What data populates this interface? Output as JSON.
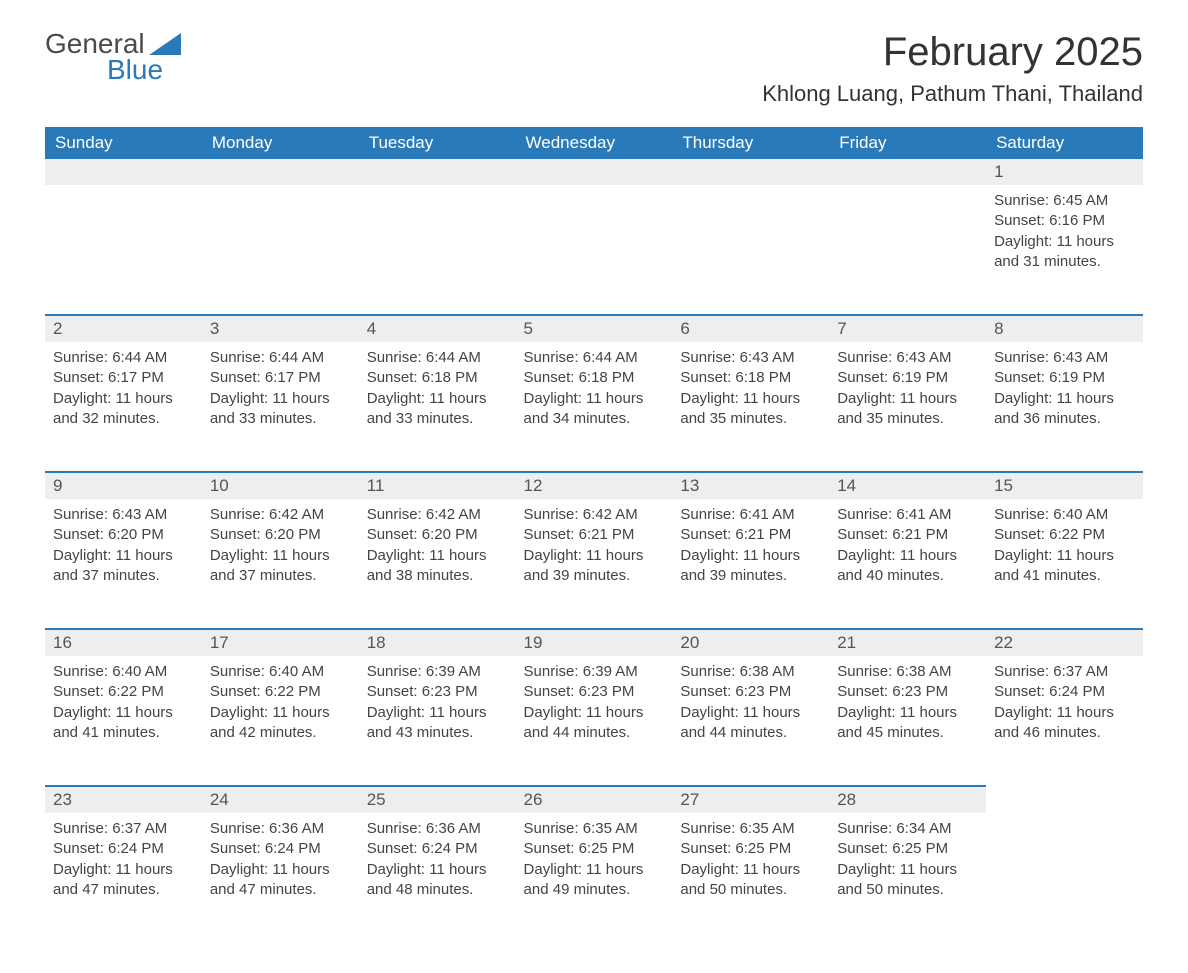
{
  "brand": {
    "name_top": "General",
    "name_bottom": "Blue",
    "text_color_top": "#4a4a4a",
    "text_color_bottom": "#2a7ab9",
    "triangle_color": "#2a7ab9"
  },
  "header": {
    "month_title": "February 2025",
    "location": "Khlong Luang, Pathum Thani, Thailand"
  },
  "colors": {
    "header_bg": "#2a7ab9",
    "header_text": "#ffffff",
    "daynum_bg": "#eeeeee",
    "row_divider": "#2a7ab9",
    "body_text": "#444444",
    "page_bg": "#ffffff"
  },
  "typography": {
    "title_fontsize": 40,
    "location_fontsize": 22,
    "weekday_fontsize": 17,
    "daynum_fontsize": 17,
    "body_fontsize": 15,
    "font_family": "Segoe UI"
  },
  "calendar": {
    "type": "table",
    "weekdays": [
      "Sunday",
      "Monday",
      "Tuesday",
      "Wednesday",
      "Thursday",
      "Friday",
      "Saturday"
    ],
    "labels": {
      "sunrise": "Sunrise:",
      "sunset": "Sunset:",
      "daylight": "Daylight:"
    },
    "weeks": [
      [
        null,
        null,
        null,
        null,
        null,
        null,
        {
          "day": "1",
          "sunrise": "6:45 AM",
          "sunset": "6:16 PM",
          "daylight": "11 hours and 31 minutes."
        }
      ],
      [
        {
          "day": "2",
          "sunrise": "6:44 AM",
          "sunset": "6:17 PM",
          "daylight": "11 hours and 32 minutes."
        },
        {
          "day": "3",
          "sunrise": "6:44 AM",
          "sunset": "6:17 PM",
          "daylight": "11 hours and 33 minutes."
        },
        {
          "day": "4",
          "sunrise": "6:44 AM",
          "sunset": "6:18 PM",
          "daylight": "11 hours and 33 minutes."
        },
        {
          "day": "5",
          "sunrise": "6:44 AM",
          "sunset": "6:18 PM",
          "daylight": "11 hours and 34 minutes."
        },
        {
          "day": "6",
          "sunrise": "6:43 AM",
          "sunset": "6:18 PM",
          "daylight": "11 hours and 35 minutes."
        },
        {
          "day": "7",
          "sunrise": "6:43 AM",
          "sunset": "6:19 PM",
          "daylight": "11 hours and 35 minutes."
        },
        {
          "day": "8",
          "sunrise": "6:43 AM",
          "sunset": "6:19 PM",
          "daylight": "11 hours and 36 minutes."
        }
      ],
      [
        {
          "day": "9",
          "sunrise": "6:43 AM",
          "sunset": "6:20 PM",
          "daylight": "11 hours and 37 minutes."
        },
        {
          "day": "10",
          "sunrise": "6:42 AM",
          "sunset": "6:20 PM",
          "daylight": "11 hours and 37 minutes."
        },
        {
          "day": "11",
          "sunrise": "6:42 AM",
          "sunset": "6:20 PM",
          "daylight": "11 hours and 38 minutes."
        },
        {
          "day": "12",
          "sunrise": "6:42 AM",
          "sunset": "6:21 PM",
          "daylight": "11 hours and 39 minutes."
        },
        {
          "day": "13",
          "sunrise": "6:41 AM",
          "sunset": "6:21 PM",
          "daylight": "11 hours and 39 minutes."
        },
        {
          "day": "14",
          "sunrise": "6:41 AM",
          "sunset": "6:21 PM",
          "daylight": "11 hours and 40 minutes."
        },
        {
          "day": "15",
          "sunrise": "6:40 AM",
          "sunset": "6:22 PM",
          "daylight": "11 hours and 41 minutes."
        }
      ],
      [
        {
          "day": "16",
          "sunrise": "6:40 AM",
          "sunset": "6:22 PM",
          "daylight": "11 hours and 41 minutes."
        },
        {
          "day": "17",
          "sunrise": "6:40 AM",
          "sunset": "6:22 PM",
          "daylight": "11 hours and 42 minutes."
        },
        {
          "day": "18",
          "sunrise": "6:39 AM",
          "sunset": "6:23 PM",
          "daylight": "11 hours and 43 minutes."
        },
        {
          "day": "19",
          "sunrise": "6:39 AM",
          "sunset": "6:23 PM",
          "daylight": "11 hours and 44 minutes."
        },
        {
          "day": "20",
          "sunrise": "6:38 AM",
          "sunset": "6:23 PM",
          "daylight": "11 hours and 44 minutes."
        },
        {
          "day": "21",
          "sunrise": "6:38 AM",
          "sunset": "6:23 PM",
          "daylight": "11 hours and 45 minutes."
        },
        {
          "day": "22",
          "sunrise": "6:37 AM",
          "sunset": "6:24 PM",
          "daylight": "11 hours and 46 minutes."
        }
      ],
      [
        {
          "day": "23",
          "sunrise": "6:37 AM",
          "sunset": "6:24 PM",
          "daylight": "11 hours and 47 minutes."
        },
        {
          "day": "24",
          "sunrise": "6:36 AM",
          "sunset": "6:24 PM",
          "daylight": "11 hours and 47 minutes."
        },
        {
          "day": "25",
          "sunrise": "6:36 AM",
          "sunset": "6:24 PM",
          "daylight": "11 hours and 48 minutes."
        },
        {
          "day": "26",
          "sunrise": "6:35 AM",
          "sunset": "6:25 PM",
          "daylight": "11 hours and 49 minutes."
        },
        {
          "day": "27",
          "sunrise": "6:35 AM",
          "sunset": "6:25 PM",
          "daylight": "11 hours and 50 minutes."
        },
        {
          "day": "28",
          "sunrise": "6:34 AM",
          "sunset": "6:25 PM",
          "daylight": "11 hours and 50 minutes."
        },
        null
      ]
    ]
  }
}
